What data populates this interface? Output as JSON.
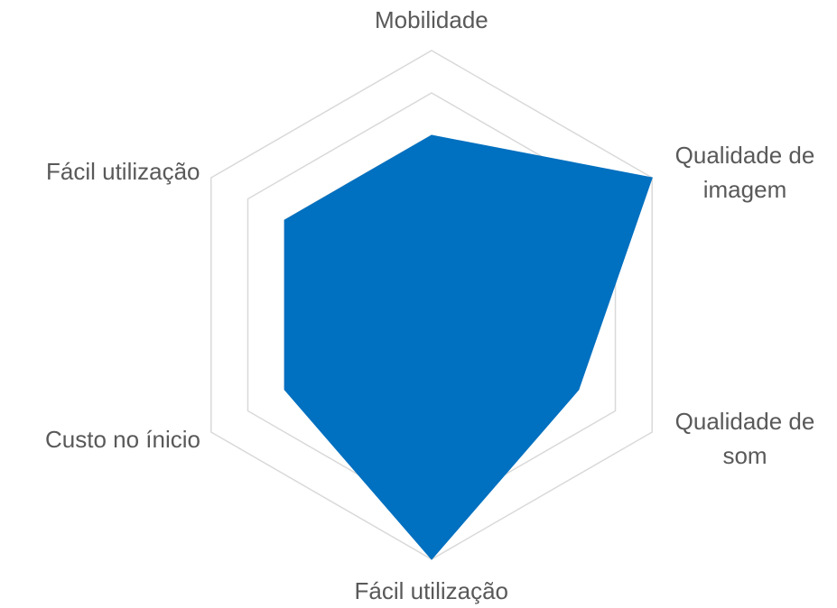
{
  "chart_data": {
    "type": "radar",
    "categories": [
      "Mobilidade",
      "Qualidade de imagem",
      "Qualidade de som",
      "Fácil utilização",
      "Custo no ínicio",
      "Fácil utilização"
    ],
    "values": [
      4,
      6,
      4,
      6,
      4,
      4
    ],
    "color": "#0070c0",
    "rlim": [
      0,
      6
    ],
    "rticks": [
      1,
      2,
      3,
      4,
      5,
      6
    ],
    "grid": true
  }
}
